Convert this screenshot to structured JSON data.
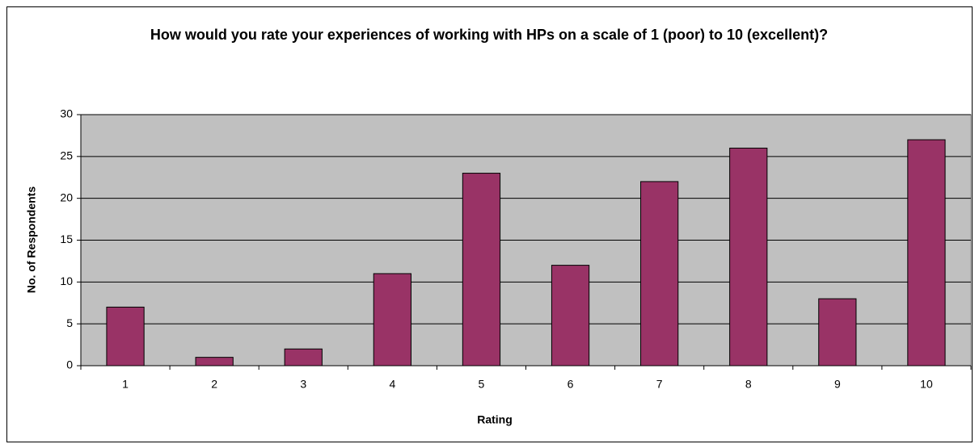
{
  "chart_data": {
    "type": "bar",
    "title": "How would you rate your experiences of working with HPs on a scale of 1 (poor) to 10 (excellent)?",
    "x_label": "Rating",
    "y_label": "No. of Respondents",
    "categories": [
      "1",
      "2",
      "3",
      "4",
      "5",
      "6",
      "7",
      "8",
      "9",
      "10"
    ],
    "values": [
      7,
      1,
      2,
      11,
      23,
      12,
      22,
      26,
      8,
      27
    ],
    "color": "#993366",
    "ylim": [
      0,
      30
    ],
    "yticks": [
      0,
      5,
      10,
      15,
      20,
      25,
      30
    ],
    "grid": true
  }
}
